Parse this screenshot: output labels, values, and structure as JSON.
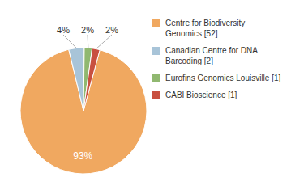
{
  "chart_data": {
    "type": "pie",
    "labels": [
      "Centre for Biodiversity\nGenomics [52]",
      "Canadian Centre for DNA\nBarcoding [2]",
      "Eurofins Genomics Louisville [1]",
      "CABI Bioscience [1]"
    ],
    "values": [
      93,
      4,
      2,
      2
    ],
    "value_labels": [
      "93%",
      "4%",
      "2%",
      "2%"
    ],
    "data_labels": true,
    "colors": [
      "#F0A860",
      "#A8C4D8",
      "#90B870",
      "#C85040"
    ],
    "legend": "right"
  }
}
